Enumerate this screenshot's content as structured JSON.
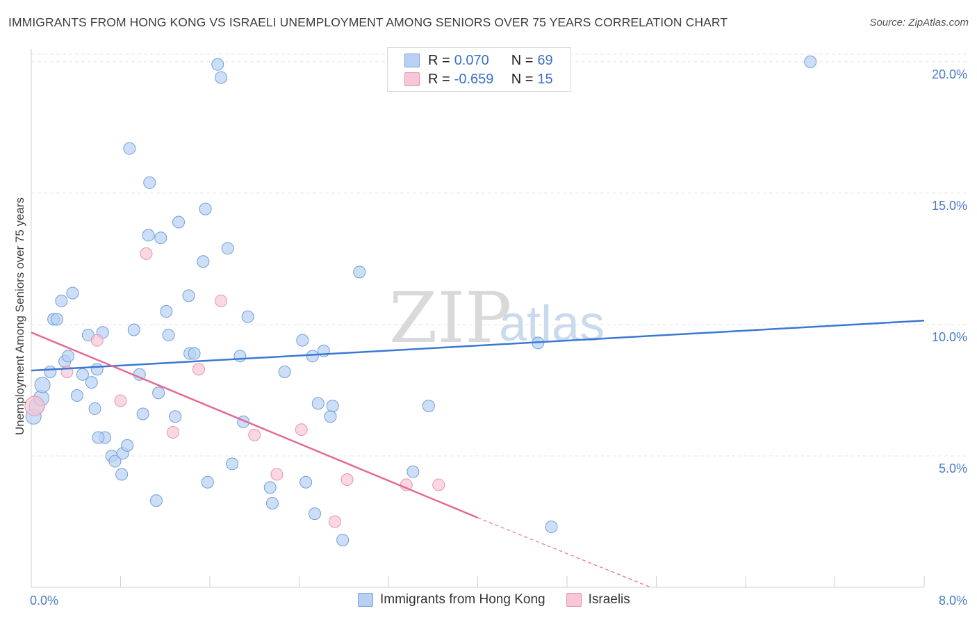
{
  "title": "IMMIGRANTS FROM HONG KONG VS ISRAELI UNEMPLOYMENT AMONG SENIORS OVER 75 YEARS CORRELATION CHART",
  "source": "Source: ZipAtlas.com",
  "legend": {
    "r_label": "R =",
    "n_label": "N =",
    "rows": [
      {
        "name": "Immigrants from Hong Kong",
        "r": "0.070",
        "n": "69",
        "color": "#a9c8f0",
        "border": "#7aa3e0"
      },
      {
        "name": "Israelis",
        "r": "-0.659",
        "n": "15",
        "color": "#f7c1d1",
        "border": "#e993ad"
      }
    ]
  },
  "colors": {
    "blue": "#3a78d4",
    "pink": "#e46a94",
    "blue_fill": "#b8d1f3",
    "pink_fill": "#f8c6d6"
  },
  "watermark": {
    "zip": "ZIP",
    "atlas": "atlas"
  },
  "chart_data": {
    "type": "scatter",
    "title": "IMMIGRANTS FROM HONG KONG VS ISRAELI UNEMPLOYMENT AMONG SENIORS OVER 75 YEARS CORRELATION CHART",
    "xlabel": "",
    "ylabel": "Unemployment Among Seniors over 75 years",
    "xlim": [
      0,
      8
    ],
    "ylim": [
      0,
      20.5
    ],
    "x_tick_labels": [
      "0.0%",
      "8.0%"
    ],
    "y_ticks": [
      5,
      10,
      15,
      20
    ],
    "y_tick_labels": [
      "5.0%",
      "10.0%",
      "15.0%",
      "20.0%"
    ],
    "grid": true,
    "series": [
      {
        "name": "Immigrants from Hong Kong",
        "points": [
          [
            0.02,
            6.5
          ],
          [
            0.05,
            6.9
          ],
          [
            0.09,
            7.2
          ],
          [
            0.1,
            7.7
          ],
          [
            0.17,
            8.2
          ],
          [
            0.2,
            10.2
          ],
          [
            0.23,
            10.2
          ],
          [
            0.27,
            10.9
          ],
          [
            0.3,
            8.6
          ],
          [
            0.33,
            8.8
          ],
          [
            0.37,
            11.2
          ],
          [
            0.41,
            7.3
          ],
          [
            0.46,
            8.1
          ],
          [
            0.51,
            9.6
          ],
          [
            0.54,
            7.8
          ],
          [
            0.57,
            6.8
          ],
          [
            0.59,
            8.3
          ],
          [
            0.64,
            9.7
          ],
          [
            0.66,
            5.7
          ],
          [
            0.72,
            5.0
          ],
          [
            0.75,
            4.8
          ],
          [
            0.81,
            4.3
          ],
          [
            0.82,
            5.1
          ],
          [
            0.86,
            5.4
          ],
          [
            0.88,
            16.7
          ],
          [
            0.92,
            9.8
          ],
          [
            0.97,
            8.1
          ],
          [
            1.0,
            6.6
          ],
          [
            1.05,
            13.4
          ],
          [
            1.06,
            15.4
          ],
          [
            1.12,
            3.3
          ],
          [
            1.14,
            7.4
          ],
          [
            1.16,
            13.3
          ],
          [
            1.21,
            10.5
          ],
          [
            1.23,
            9.6
          ],
          [
            1.29,
            6.5
          ],
          [
            1.32,
            13.9
          ],
          [
            1.41,
            11.1
          ],
          [
            1.42,
            8.9
          ],
          [
            1.46,
            8.9
          ],
          [
            1.54,
            12.4
          ],
          [
            1.56,
            14.4
          ],
          [
            1.58,
            4.0
          ],
          [
            1.67,
            19.9
          ],
          [
            1.7,
            19.4
          ],
          [
            1.76,
            12.9
          ],
          [
            1.8,
            4.7
          ],
          [
            1.87,
            8.8
          ],
          [
            1.9,
            6.3
          ],
          [
            1.94,
            10.3
          ],
          [
            2.14,
            3.8
          ],
          [
            2.16,
            3.2
          ],
          [
            2.27,
            8.2
          ],
          [
            2.43,
            9.4
          ],
          [
            2.46,
            4.0
          ],
          [
            2.52,
            8.8
          ],
          [
            2.54,
            2.8
          ],
          [
            2.57,
            7.0
          ],
          [
            2.62,
            9.0
          ],
          [
            2.68,
            6.5
          ],
          [
            2.7,
            6.9
          ],
          [
            2.79,
            1.8
          ],
          [
            2.94,
            12.0
          ],
          [
            3.42,
            4.4
          ],
          [
            3.56,
            6.9
          ],
          [
            4.54,
            9.3
          ],
          [
            4.66,
            2.3
          ],
          [
            6.98,
            20.0
          ],
          [
            0.6,
            5.7
          ]
        ],
        "trend": {
          "x": [
            0,
            8
          ],
          "y": [
            8.25,
            10.15
          ]
        }
      },
      {
        "name": "Israelis",
        "points": [
          [
            0.03,
            6.9
          ],
          [
            0.32,
            8.2
          ],
          [
            0.59,
            9.4
          ],
          [
            0.8,
            7.1
          ],
          [
            1.03,
            12.7
          ],
          [
            1.27,
            5.9
          ],
          [
            1.5,
            8.3
          ],
          [
            1.7,
            10.9
          ],
          [
            2.0,
            5.8
          ],
          [
            2.2,
            4.3
          ],
          [
            2.42,
            6.0
          ],
          [
            2.72,
            2.5
          ],
          [
            2.83,
            4.1
          ],
          [
            3.36,
            3.9
          ],
          [
            3.65,
            3.9
          ]
        ],
        "trend": {
          "x": [
            0,
            4.0
          ],
          "y": [
            9.7,
            2.65
          ]
        },
        "trend_dashed": {
          "x": [
            4.0,
            5.55
          ],
          "y": [
            2.65,
            0.0
          ]
        }
      }
    ]
  }
}
